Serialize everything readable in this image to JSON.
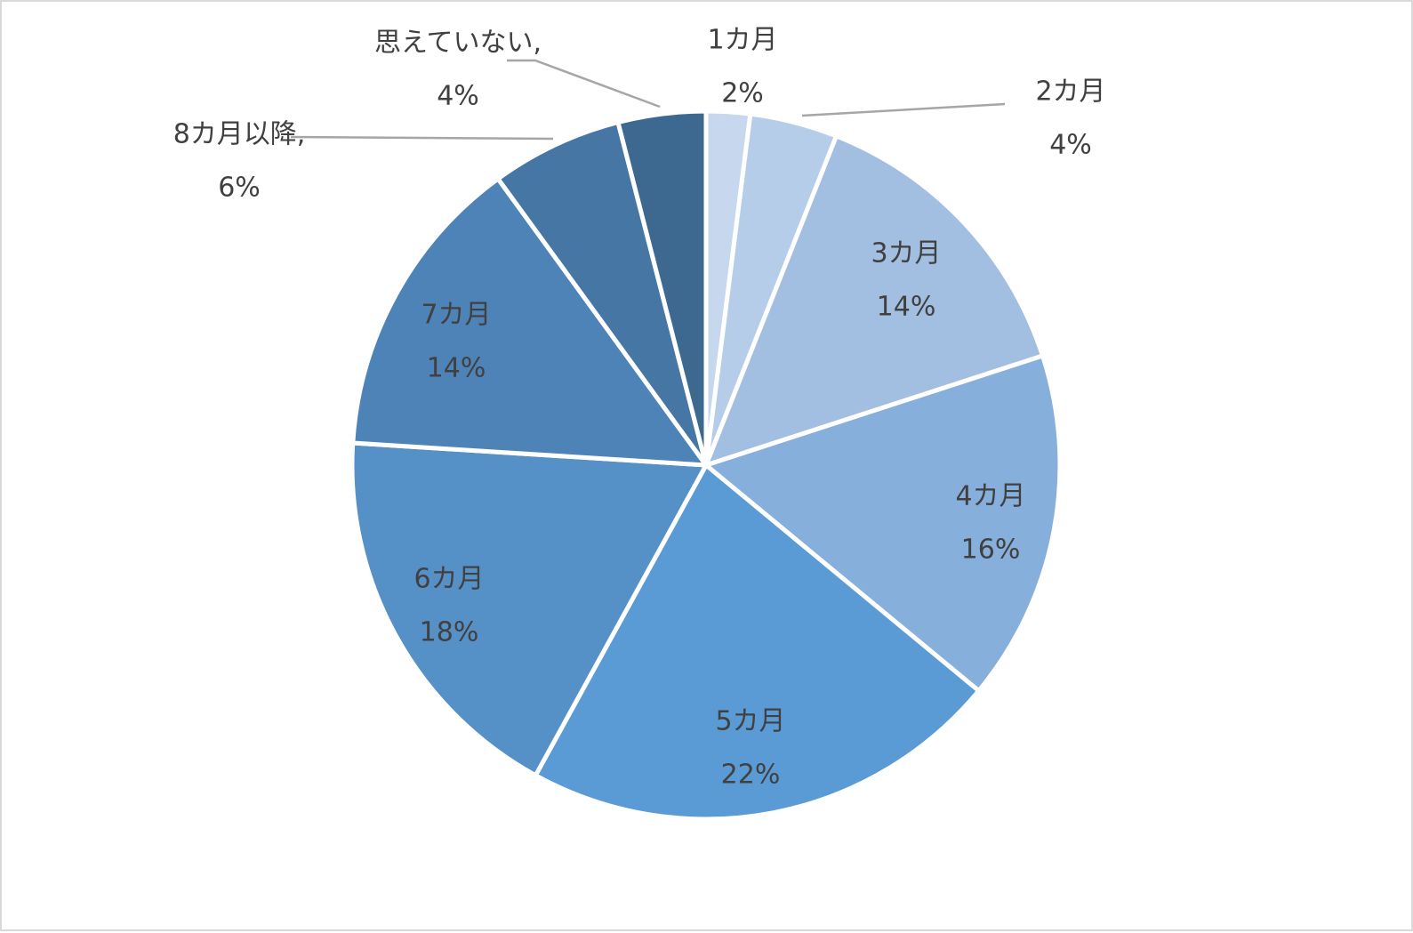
{
  "chart_data": {
    "type": "pie",
    "title": "",
    "start_angle_deg": 0,
    "direction": "clockwise",
    "legend": "none",
    "slices": [
      {
        "name": "1カ月",
        "value": 2,
        "value_label": "2%",
        "color": "#c7d8ee"
      },
      {
        "name": "2カ月",
        "value": 4,
        "value_label": "4%",
        "color": "#b5cde9"
      },
      {
        "name": "3カ月",
        "value": 14,
        "value_label": "14%",
        "color": "#a2bfe2"
      },
      {
        "name": "4カ月",
        "value": 16,
        "value_label": "16%",
        "color": "#86afdc"
      },
      {
        "name": "5カ月",
        "value": 22,
        "value_label": "22%",
        "color": "#5b9bd5"
      },
      {
        "name": "6カ月",
        "value": 18,
        "value_label": "18%",
        "color": "#5590c6"
      },
      {
        "name": "7カ月",
        "value": 14,
        "value_label": "14%",
        "color": "#4e83b8"
      },
      {
        "name": "8カ月以降,",
        "value": 6,
        "value_label": "6%",
        "color": "#4676a4"
      },
      {
        "name": "思えていない,",
        "value": 4,
        "value_label": "4%",
        "color": "#3d6890"
      }
    ]
  }
}
